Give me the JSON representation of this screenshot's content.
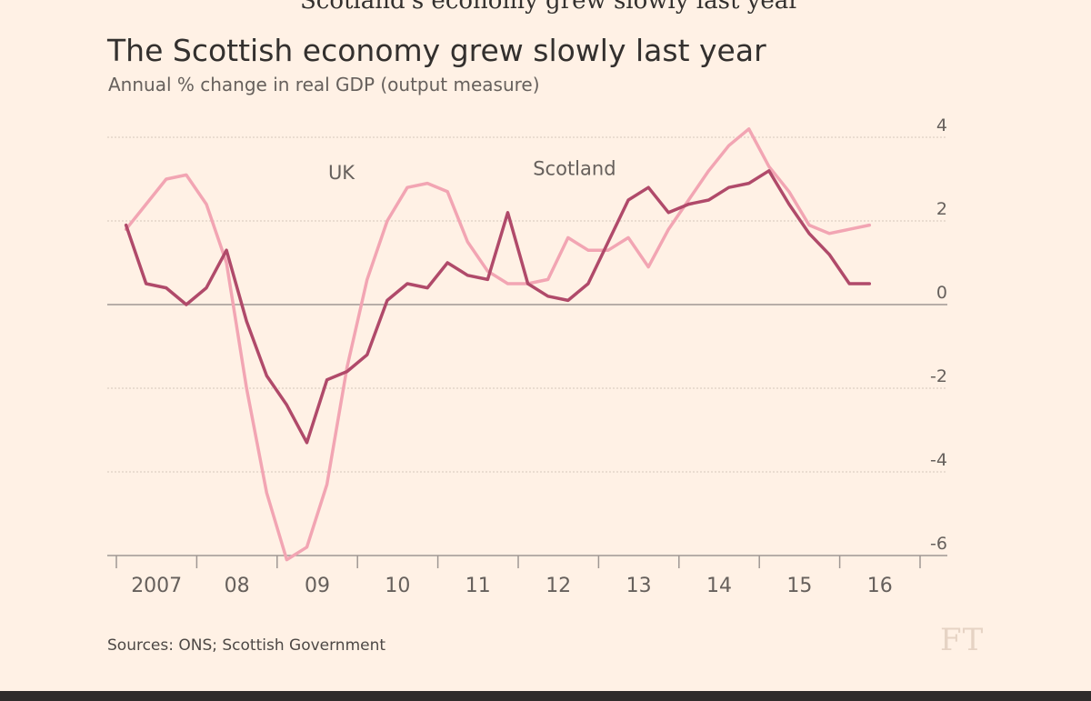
{
  "header": {
    "cropped_text": "Scotland's economy grew slowly last year",
    "title": "The Scottish economy grew slowly last year",
    "subtitle": "Annual % change in real GDP (output measure)"
  },
  "footer": {
    "source": "Sources: ONS; Scottish Government",
    "logo": "FT"
  },
  "colors": {
    "background": "#fff1e5",
    "scotland": "#b04a6a",
    "uk": "#f2a5b3",
    "zero_line": "#9f9793",
    "grid": "#d6c8bc"
  },
  "chart_data": {
    "type": "line",
    "title": "The Scottish economy grew slowly last year",
    "subtitle": "Annual % change in real GDP (output measure)",
    "ylim": [
      -6,
      4
    ],
    "xlim": [
      2007,
      2017
    ],
    "y_ticks": [
      {
        "value": 4,
        "label": "4"
      },
      {
        "value": 2,
        "label": "2"
      },
      {
        "value": 0,
        "label": "0"
      },
      {
        "value": -2,
        "label": "-2"
      },
      {
        "value": -4,
        "label": "-4"
      },
      {
        "value": -6,
        "label": "-6"
      }
    ],
    "x_ticks": [
      "2007",
      "08",
      "09",
      "10",
      "11",
      "12",
      "13",
      "14",
      "15",
      "16"
    ],
    "grid": true,
    "legend": "direct-labels",
    "annotations": [
      {
        "series": "UK",
        "text": "UK",
        "x": 2009.8,
        "y": 3.0
      },
      {
        "series": "Scotland",
        "text": "Scotland",
        "x": 2012.7,
        "y": 3.1
      }
    ],
    "series": [
      {
        "name": "UK",
        "color": "#f2a5b3",
        "x": [
          2007.12,
          2007.37,
          2007.62,
          2007.87,
          2008.12,
          2008.37,
          2008.62,
          2008.87,
          2009.12,
          2009.37,
          2009.62,
          2009.87,
          2010.12,
          2010.37,
          2010.62,
          2010.87,
          2011.12,
          2011.37,
          2011.62,
          2011.87,
          2012.12,
          2012.37,
          2012.62,
          2012.87,
          2013.12,
          2013.37,
          2013.62,
          2013.87,
          2014.12,
          2014.37,
          2014.62,
          2014.87,
          2015.12,
          2015.37,
          2015.62,
          2015.87,
          2016.12,
          2016.37
        ],
        "values": [
          1.8,
          2.4,
          3.0,
          3.1,
          2.4,
          1.0,
          -2.0,
          -4.5,
          -6.1,
          -5.8,
          -4.3,
          -1.5,
          0.6,
          2.0,
          2.8,
          2.9,
          2.7,
          1.5,
          0.8,
          0.5,
          0.5,
          0.6,
          1.6,
          1.3,
          1.3,
          1.6,
          0.9,
          1.8,
          2.5,
          3.2,
          3.8,
          4.2,
          3.3,
          2.7,
          1.9,
          1.7,
          1.8,
          1.9
        ]
      },
      {
        "name": "Scotland",
        "color": "#b04a6a",
        "x": [
          2007.12,
          2007.37,
          2007.62,
          2007.87,
          2008.12,
          2008.37,
          2008.62,
          2008.87,
          2009.12,
          2009.37,
          2009.62,
          2009.87,
          2010.12,
          2010.37,
          2010.62,
          2010.87,
          2011.12,
          2011.37,
          2011.62,
          2011.87,
          2012.12,
          2012.37,
          2012.62,
          2012.87,
          2013.12,
          2013.37,
          2013.62,
          2013.87,
          2014.12,
          2014.37,
          2014.62,
          2014.87,
          2015.12,
          2015.37,
          2015.62,
          2015.87,
          2016.12,
          2016.37
        ],
        "values": [
          1.9,
          0.5,
          0.4,
          0.0,
          0.4,
          1.3,
          -0.4,
          -1.7,
          -2.4,
          -3.3,
          -1.8,
          -1.6,
          -1.2,
          0.1,
          0.5,
          0.4,
          1.0,
          0.7,
          0.6,
          2.2,
          0.5,
          0.2,
          0.1,
          0.5,
          1.5,
          2.5,
          2.8,
          2.2,
          2.4,
          2.5,
          2.8,
          2.9,
          3.2,
          2.4,
          1.7,
          1.2,
          0.5,
          0.5
        ]
      }
    ]
  }
}
